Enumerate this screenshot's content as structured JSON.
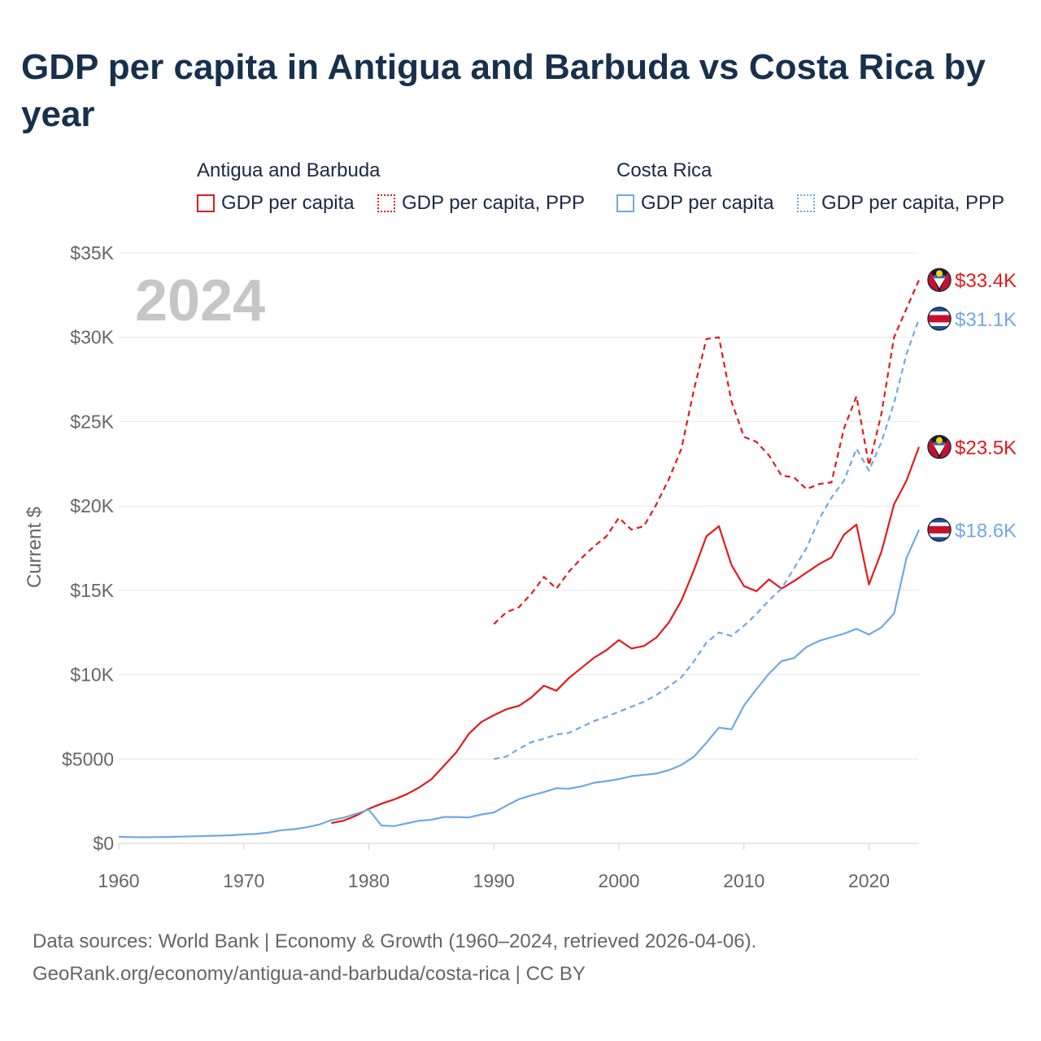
{
  "title": "GDP per capita in Antigua and Barbuda vs Costa Rica by year",
  "legend": {
    "groups": [
      {
        "name": "Antigua and Barbuda",
        "items": [
          {
            "label": "GDP per capita",
            "style": "solid",
            "color": "#e31a1c"
          },
          {
            "label": "GDP per capita, PPP",
            "style": "dotted",
            "color": "#e31a1c"
          }
        ]
      },
      {
        "name": "Costa Rica",
        "items": [
          {
            "label": "GDP per capita",
            "style": "solid",
            "color": "#6fa8e6"
          },
          {
            "label": "GDP per capita, PPP",
            "style": "dotted",
            "color": "#6fa8e6"
          }
        ]
      }
    ]
  },
  "footer": {
    "line1": "Data sources: World Bank | Economy & Growth (1960–2024, retrieved 2026-04-06).",
    "line2": "GeoRank.org/economy/antigua-and-barbuda/costa-rica | CC BY"
  },
  "chart_data": {
    "type": "line",
    "title": "GDP per capita in Antigua and Barbuda vs Costa Rica by year",
    "year_label": "2024",
    "xlabel": "",
    "ylabel": "Current $",
    "xlim": [
      1960,
      2024
    ],
    "ylim": [
      0,
      35000
    ],
    "x_ticks": [
      1960,
      1970,
      1980,
      1990,
      2000,
      2010,
      2020
    ],
    "y_ticks": [
      {
        "value": 0,
        "label": "$0"
      },
      {
        "value": 5000,
        "label": "$5000"
      },
      {
        "value": 10000,
        "label": "$10K"
      },
      {
        "value": 15000,
        "label": "$15K"
      },
      {
        "value": 20000,
        "label": "$20K"
      },
      {
        "value": 25000,
        "label": "$25K"
      },
      {
        "value": 30000,
        "label": "$30K"
      },
      {
        "value": 35000,
        "label": "$35K"
      }
    ],
    "grid": true,
    "series": [
      {
        "name": "Antigua and Barbuda — GDP per capita",
        "key": "atg-gdp",
        "color": "#e31a1c",
        "dashed": false,
        "end_label": "$23.5K",
        "flag": "antigua-and-barbuda-flag-icon",
        "x": [
          1977,
          1978,
          1979,
          1980,
          1981,
          1982,
          1983,
          1984,
          1985,
          1986,
          1987,
          1988,
          1989,
          1990,
          1991,
          1992,
          1993,
          1994,
          1995,
          1996,
          1997,
          1998,
          1999,
          2000,
          2001,
          2002,
          2003,
          2004,
          2005,
          2006,
          2007,
          2008,
          2009,
          2010,
          2011,
          2012,
          2013,
          2014,
          2015,
          2016,
          2017,
          2018,
          2019,
          2020,
          2021,
          2022,
          2023,
          2024
        ],
        "values": [
          1200,
          1350,
          1650,
          2050,
          2350,
          2600,
          2900,
          3300,
          3800,
          4600,
          5400,
          6500,
          7200,
          7600,
          7950,
          8150,
          8650,
          9350,
          9050,
          9800,
          10400,
          11000,
          11450,
          12050,
          11550,
          11700,
          12200,
          13100,
          14400,
          16200,
          18200,
          18800,
          16500,
          15250,
          14950,
          15650,
          15100,
          15550,
          16050,
          16550,
          16950,
          18300,
          18900,
          15350,
          17300,
          20100,
          21500,
          23500
        ]
      },
      {
        "name": "Antigua and Barbuda — GDP per capita, PPP",
        "key": "atg-ppp",
        "color": "#e31a1c",
        "dashed": true,
        "end_label": "$33.4K",
        "flag": "antigua-and-barbuda-flag-icon",
        "x": [
          1990,
          1991,
          1992,
          1993,
          1994,
          1995,
          1996,
          1997,
          1998,
          1999,
          2000,
          2001,
          2002,
          2003,
          2004,
          2005,
          2006,
          2007,
          2008,
          2009,
          2010,
          2011,
          2012,
          2013,
          2014,
          2015,
          2016,
          2017,
          2018,
          2019,
          2020,
          2021,
          2022,
          2023,
          2024
        ],
        "values": [
          13000,
          13700,
          14000,
          14800,
          15800,
          15100,
          16100,
          16900,
          17600,
          18200,
          19300,
          18600,
          18800,
          20100,
          21600,
          23400,
          26900,
          29900,
          30000,
          26200,
          24100,
          23800,
          23000,
          21800,
          21700,
          21000,
          21300,
          21400,
          24600,
          26500,
          22400,
          25500,
          30000,
          31700,
          33400
        ]
      },
      {
        "name": "Costa Rica — GDP per capita",
        "key": "cri-gdp",
        "color": "#6fa8e6",
        "dashed": false,
        "end_label": "$18.6K",
        "flag": "costa-rica-flag-icon",
        "x": [
          1960,
          1961,
          1962,
          1963,
          1964,
          1965,
          1966,
          1967,
          1968,
          1969,
          1970,
          1971,
          1972,
          1973,
          1974,
          1975,
          1976,
          1977,
          1978,
          1979,
          1980,
          1981,
          1982,
          1983,
          1984,
          1985,
          1986,
          1987,
          1988,
          1989,
          1990,
          1991,
          1992,
          1993,
          1994,
          1995,
          1996,
          1997,
          1998,
          1999,
          2000,
          2001,
          2002,
          2003,
          2004,
          2005,
          2006,
          2007,
          2008,
          2009,
          2010,
          2011,
          2012,
          2013,
          2014,
          2015,
          2016,
          2017,
          2018,
          2019,
          2020,
          2021,
          2022,
          2023,
          2024
        ],
        "values": [
          390,
          370,
          360,
          370,
          380,
          400,
          420,
          440,
          460,
          480,
          530,
          560,
          640,
          780,
          840,
          950,
          1110,
          1380,
          1530,
          1760,
          2000,
          1060,
          1020,
          1180,
          1340,
          1400,
          1560,
          1560,
          1540,
          1710,
          1830,
          2230,
          2620,
          2850,
          3040,
          3270,
          3240,
          3380,
          3590,
          3690,
          3810,
          3980,
          4060,
          4140,
          4340,
          4650,
          5140,
          5970,
          6860,
          6760,
          8170,
          9140,
          10060,
          10800,
          10980,
          11640,
          12000,
          12220,
          12430,
          12720,
          12380,
          12810,
          13620,
          16910,
          18590
        ]
      },
      {
        "name": "Costa Rica — GDP per capita, PPP",
        "key": "cri-ppp",
        "color": "#6fa8e6",
        "dashed": true,
        "end_label": "$31.1K",
        "flag": "costa-rica-flag-icon",
        "x": [
          1990,
          1991,
          1992,
          1993,
          1994,
          1995,
          1996,
          1997,
          1998,
          1999,
          2000,
          2001,
          2002,
          2003,
          2004,
          2005,
          2006,
          2007,
          2008,
          2009,
          2010,
          2011,
          2012,
          2013,
          2014,
          2015,
          2016,
          2017,
          2018,
          2019,
          2020,
          2021,
          2022,
          2023,
          2024
        ],
        "values": [
          5000,
          5150,
          5600,
          6000,
          6200,
          6450,
          6550,
          6900,
          7250,
          7500,
          7800,
          8100,
          8400,
          8800,
          9300,
          9850,
          10800,
          11900,
          12500,
          12300,
          12900,
          13600,
          14400,
          15100,
          16300,
          17500,
          19200,
          20500,
          21500,
          23400,
          22100,
          23800,
          26100,
          29000,
          31100
        ]
      }
    ]
  }
}
